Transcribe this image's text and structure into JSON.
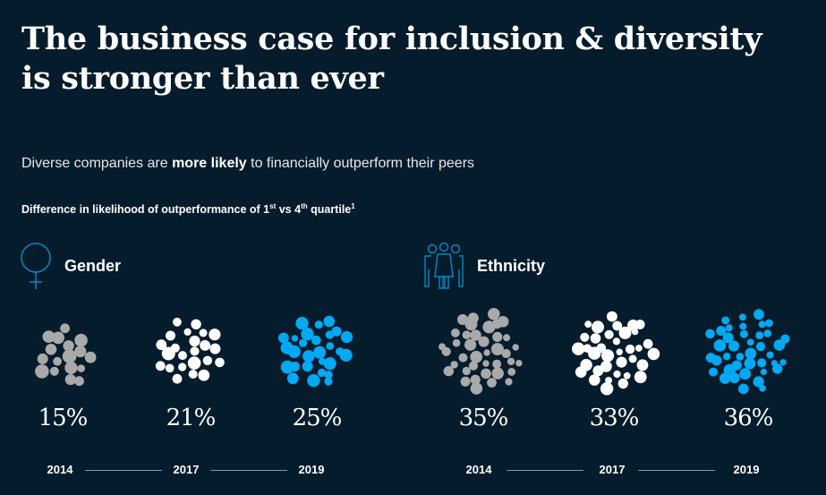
{
  "title_line1": "The business case for inclusion & diversity",
  "title_line2": "is stronger than ever",
  "subtitle": {
    "pre": "Diverse companies are ",
    "bold": "more likely",
    "post": " to financially outperform their peers"
  },
  "note": {
    "text1": "Difference in likelihood of outperformance of 1",
    "sup1": "st",
    "text2": " vs 4",
    "sup2": "th",
    "text3": " quartile",
    "sup3": "1"
  },
  "colors": {
    "2014": "#a9a9a9",
    "2017": "#ffffff",
    "2019": "#00a9f4",
    "icon": "#0a86c7",
    "background": "#051c2c"
  },
  "chart_data": {
    "type": "bubble-cluster",
    "title": "Difference in likelihood of outperformance of 1st vs 4th quartile",
    "categories": [
      "2014",
      "2017",
      "2019"
    ],
    "series": [
      {
        "name": "Gender",
        "icon": "female-symbol-icon",
        "values": [
          15,
          21,
          25
        ],
        "labels": [
          "15%",
          "21%",
          "25%"
        ]
      },
      {
        "name": "Ethnicity",
        "icon": "people-group-icon",
        "values": [
          35,
          33,
          36
        ],
        "labels": [
          "35%",
          "33%",
          "36%"
        ]
      }
    ]
  }
}
